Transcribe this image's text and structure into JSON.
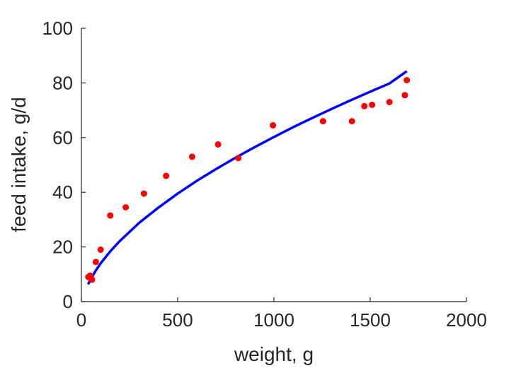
{
  "chart_data": {
    "type": "scatter",
    "xlabel": "weight, g",
    "ylabel": "feed intake, g/d",
    "xlim": [
      0,
      2000
    ],
    "ylim": [
      0,
      100
    ],
    "xticks": [
      "0",
      "500",
      "1000",
      "1500",
      "2000"
    ],
    "yticks": [
      "0",
      "20",
      "40",
      "60",
      "80",
      "100"
    ],
    "grid": false,
    "legend": "none",
    "series": [
      {
        "kind": "scatter",
        "color": "#ff0000",
        "points": [
          [
            36,
            9.0
          ],
          [
            45,
            9.5
          ],
          [
            55,
            8.0
          ],
          [
            75,
            14.5
          ],
          [
            100,
            19.0
          ],
          [
            150,
            31.5
          ],
          [
            230,
            34.5
          ],
          [
            325,
            39.5
          ],
          [
            440,
            46.0
          ],
          [
            575,
            53.0
          ],
          [
            710,
            57.5
          ],
          [
            815,
            52.5
          ],
          [
            995,
            64.5
          ],
          [
            1255,
            66.0
          ],
          [
            1405,
            66.0
          ],
          [
            1470,
            71.5
          ],
          [
            1510,
            72.0
          ],
          [
            1600,
            73.0
          ],
          [
            1680,
            75.5
          ],
          [
            1690,
            81.0
          ]
        ]
      },
      {
        "kind": "line",
        "color": "#0000ff",
        "points": [
          [
            35,
            6.3
          ],
          [
            50,
            8.4
          ],
          [
            75,
            11.4
          ],
          [
            100,
            14.0
          ],
          [
            150,
            18.4
          ],
          [
            200,
            22.2
          ],
          [
            300,
            28.8
          ],
          [
            400,
            34.4
          ],
          [
            500,
            39.5
          ],
          [
            600,
            44.2
          ],
          [
            700,
            48.5
          ],
          [
            800,
            52.6
          ],
          [
            900,
            56.5
          ],
          [
            1000,
            60.2
          ],
          [
            1100,
            63.8
          ],
          [
            1200,
            67.2
          ],
          [
            1300,
            70.5
          ],
          [
            1400,
            73.7
          ],
          [
            1500,
            76.8
          ],
          [
            1600,
            79.8
          ],
          [
            1690,
            84.3
          ]
        ]
      }
    ]
  }
}
